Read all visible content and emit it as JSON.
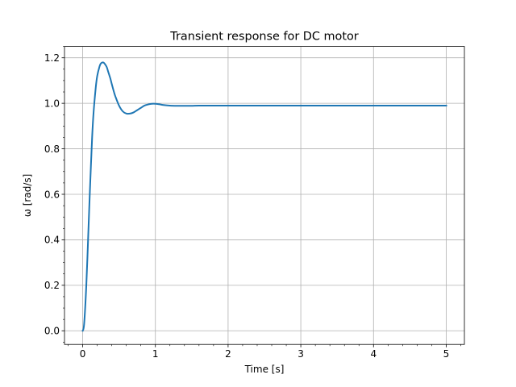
{
  "chart_data": {
    "type": "line",
    "title": "Transient response for DC motor",
    "xlabel": "Time [s]",
    "ylabel": "ω [rad/s]",
    "xlim": [
      -0.25,
      5.25
    ],
    "ylim": [
      -0.06,
      1.25
    ],
    "xticks": [
      0,
      1,
      2,
      3,
      4,
      5
    ],
    "xtick_labels": [
      "0",
      "1",
      "2",
      "3",
      "4",
      "5"
    ],
    "yticks": [
      0.0,
      0.2,
      0.4,
      0.6,
      0.8,
      1.0,
      1.2
    ],
    "ytick_labels": [
      "0.0",
      "0.2",
      "0.4",
      "0.6",
      "0.8",
      "1.0",
      "1.2"
    ],
    "grid": true,
    "minor_ticks": true,
    "series": [
      {
        "color": "#1f77b4",
        "x": [
          0,
          0.02,
          0.05,
          0.08,
          0.1,
          0.13,
          0.15,
          0.18,
          0.2,
          0.23,
          0.25,
          0.28,
          0.3,
          0.33,
          0.35,
          0.38,
          0.4,
          0.43,
          0.45,
          0.5,
          0.55,
          0.6,
          0.65,
          0.7,
          0.75,
          0.8,
          0.85,
          0.9,
          0.95,
          1.0,
          1.05,
          1.1,
          1.2,
          1.3,
          1.4,
          1.5,
          1.6,
          1.8,
          2.0,
          2.5,
          3.0,
          3.5,
          4.0,
          4.5,
          5.0
        ],
        "y": [
          0.0,
          0.03,
          0.2,
          0.45,
          0.62,
          0.85,
          0.96,
          1.07,
          1.12,
          1.16,
          1.175,
          1.18,
          1.175,
          1.16,
          1.14,
          1.11,
          1.085,
          1.05,
          1.03,
          0.99,
          0.965,
          0.955,
          0.955,
          0.96,
          0.97,
          0.98,
          0.99,
          0.995,
          0.998,
          0.998,
          0.996,
          0.993,
          0.99,
          0.989,
          0.989,
          0.989,
          0.99,
          0.99,
          0.99,
          0.99,
          0.99,
          0.99,
          0.99,
          0.99,
          0.99
        ]
      }
    ]
  },
  "colors": {
    "line": "#1f77b4",
    "grid": "#b0b0b0",
    "frame": "#000000"
  }
}
